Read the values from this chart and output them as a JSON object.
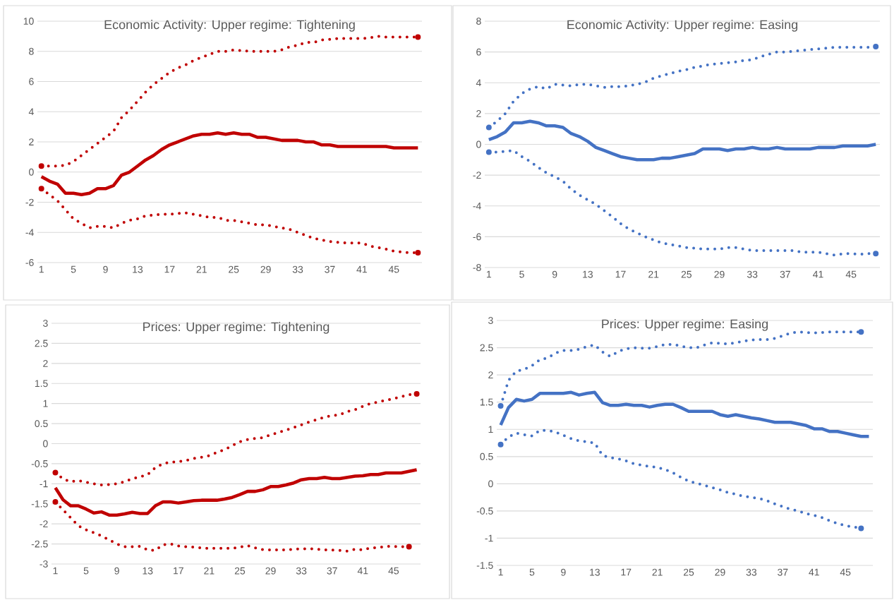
{
  "chart_data": [
    {
      "type": "line",
      "title": "Economic Activity: Upper regime: Tightening",
      "categories": [
        "1",
        null,
        null,
        null,
        "5",
        null,
        null,
        null,
        "9",
        null,
        null,
        null,
        "13",
        null,
        null,
        null,
        "17",
        null,
        null,
        null,
        "21",
        null,
        null,
        null,
        "25",
        null,
        null,
        null,
        "29",
        null,
        null,
        null,
        "33",
        null,
        null,
        null,
        "37",
        null,
        null,
        null,
        "41",
        null,
        null,
        null,
        "45",
        null,
        null,
        null
      ],
      "ylim": [
        -6,
        10
      ],
      "yticks": [
        -6,
        -4,
        -2,
        0,
        2,
        4,
        6,
        8,
        10
      ],
      "grid": "y",
      "marker": "none",
      "series": [
        {
          "color": "#c00000",
          "line_style": "dotted",
          "values": [
            0.4,
            0.4,
            0.4,
            0.45,
            0.7,
            1.1,
            1.5,
            1.9,
            2.3,
            2.7,
            3.6,
            4.1,
            4.7,
            5.3,
            5.8,
            6.2,
            6.6,
            6.9,
            7.1,
            7.4,
            7.6,
            7.8,
            8.0,
            8.0,
            8.1,
            8.05,
            8.0,
            8.0,
            8.0,
            8.0,
            8.1,
            8.3,
            8.4,
            8.6,
            8.6,
            8.75,
            8.8,
            8.85,
            8.85,
            8.85,
            8.85,
            8.9,
            9.0,
            8.95,
            8.95,
            8.95,
            8.95,
            8.95
          ]
        },
        {
          "color": "#c00000",
          "line_style": "solid",
          "values": [
            -0.3,
            -0.6,
            -0.8,
            -1.4,
            -1.4,
            -1.5,
            -1.4,
            -1.1,
            -1.1,
            -0.9,
            -0.2,
            0.0,
            0.4,
            0.8,
            1.1,
            1.5,
            1.8,
            2.0,
            2.2,
            2.4,
            2.5,
            2.5,
            2.6,
            2.5,
            2.6,
            2.5,
            2.5,
            2.3,
            2.3,
            2.2,
            2.1,
            2.1,
            2.1,
            2.0,
            2.0,
            1.8,
            1.8,
            1.7,
            1.7,
            1.7,
            1.7,
            1.7,
            1.7,
            1.7,
            1.6,
            1.6,
            1.6,
            1.6
          ]
        },
        {
          "color": "#c00000",
          "line_style": "dotted",
          "values": [
            -1.1,
            -1.5,
            -1.9,
            -2.5,
            -3.1,
            -3.4,
            -3.7,
            -3.6,
            -3.6,
            -3.7,
            -3.4,
            -3.2,
            -3.1,
            -2.9,
            -2.85,
            -2.8,
            -2.8,
            -2.75,
            -2.7,
            -2.8,
            -2.9,
            -3.0,
            -3.0,
            -3.2,
            -3.2,
            -3.3,
            -3.4,
            -3.5,
            -3.5,
            -3.6,
            -3.7,
            -3.8,
            -4.0,
            -4.2,
            -4.4,
            -4.5,
            -4.6,
            -4.65,
            -4.7,
            -4.7,
            -4.7,
            -4.9,
            -5.0,
            -5.1,
            -5.25,
            -5.3,
            -5.35,
            -5.35
          ]
        }
      ]
    },
    {
      "type": "line",
      "title": "Economic Activity: Upper regime: Easing",
      "categories": [
        "1",
        null,
        null,
        null,
        "5",
        null,
        null,
        null,
        "9",
        null,
        null,
        null,
        "13",
        null,
        null,
        null,
        "17",
        null,
        null,
        null,
        "21",
        null,
        null,
        null,
        "25",
        null,
        null,
        null,
        "29",
        null,
        null,
        null,
        "33",
        null,
        null,
        null,
        "37",
        null,
        null,
        null,
        "41",
        null,
        null,
        null,
        "45",
        null,
        null,
        null
      ],
      "ylim": [
        -8,
        8
      ],
      "yticks": [
        -8,
        -6,
        -4,
        -2,
        0,
        2,
        4,
        6,
        8
      ],
      "grid": "y",
      "marker": "none",
      "series": [
        {
          "color": "#4472c4",
          "line_style": "dotted",
          "values": [
            1.1,
            1.5,
            2.0,
            2.8,
            3.3,
            3.6,
            3.75,
            3.6,
            3.9,
            3.85,
            3.8,
            3.9,
            3.9,
            3.8,
            3.7,
            3.75,
            3.75,
            3.8,
            3.9,
            4.05,
            4.3,
            4.45,
            4.6,
            4.75,
            4.85,
            5.0,
            5.1,
            5.2,
            5.25,
            5.3,
            5.35,
            5.45,
            5.5,
            5.7,
            5.85,
            6.0,
            6.0,
            6.05,
            6.1,
            6.15,
            6.2,
            6.25,
            6.3,
            6.3,
            6.3,
            6.3,
            6.3,
            6.35
          ]
        },
        {
          "color": "#4472c4",
          "line_style": "solid",
          "values": [
            0.3,
            0.5,
            0.8,
            1.4,
            1.4,
            1.5,
            1.4,
            1.2,
            1.2,
            1.1,
            0.7,
            0.5,
            0.2,
            -0.2,
            -0.4,
            -0.6,
            -0.8,
            -0.9,
            -1.0,
            -1.0,
            -1.0,
            -0.9,
            -0.9,
            -0.8,
            -0.7,
            -0.6,
            -0.3,
            -0.3,
            -0.3,
            -0.4,
            -0.3,
            -0.3,
            -0.2,
            -0.3,
            -0.3,
            -0.2,
            -0.3,
            -0.3,
            -0.3,
            -0.3,
            -0.2,
            -0.2,
            -0.2,
            -0.1,
            -0.1,
            -0.1,
            -0.1,
            0.0
          ]
        },
        {
          "color": "#4472c4",
          "line_style": "dotted",
          "values": [
            -0.5,
            -0.5,
            -0.45,
            -0.4,
            -0.8,
            -1.1,
            -1.5,
            -1.85,
            -2.1,
            -2.4,
            -2.9,
            -3.3,
            -3.6,
            -3.9,
            -4.3,
            -4.7,
            -5.15,
            -5.5,
            -5.75,
            -6.0,
            -6.2,
            -6.4,
            -6.5,
            -6.6,
            -6.7,
            -6.75,
            -6.8,
            -6.8,
            -6.8,
            -6.7,
            -6.7,
            -6.8,
            -6.9,
            -6.9,
            -6.9,
            -6.9,
            -6.9,
            -6.9,
            -7.0,
            -7.0,
            -7.0,
            -7.1,
            -7.2,
            -7.1,
            -7.1,
            -7.15,
            -7.1,
            -7.1
          ]
        }
      ]
    },
    {
      "type": "line",
      "title": "Prices: Upper regime: Tightening",
      "categories": [
        "1",
        null,
        null,
        null,
        "5",
        null,
        null,
        null,
        "9",
        null,
        null,
        null,
        "13",
        null,
        null,
        null,
        "17",
        null,
        null,
        null,
        "21",
        null,
        null,
        null,
        "25",
        null,
        null,
        null,
        "29",
        null,
        null,
        null,
        "33",
        null,
        null,
        null,
        "37",
        null,
        null,
        null,
        "41",
        null,
        null,
        null,
        "45",
        null,
        null,
        null
      ],
      "ylim": [
        -3,
        3
      ],
      "yticks": [
        -3,
        -2.5,
        -2,
        -1.5,
        -1,
        -0.5,
        0,
        0.5,
        1,
        1.5,
        2,
        2.5,
        3
      ],
      "grid": "y",
      "marker": "none",
      "series": [
        {
          "color": "#c00000",
          "line_style": "dotted",
          "values": [
            -0.72,
            -0.88,
            -0.95,
            -0.92,
            -0.96,
            -1.0,
            -1.03,
            -1.02,
            -1.0,
            -0.95,
            -0.87,
            -0.83,
            -0.77,
            -0.6,
            -0.5,
            -0.46,
            -0.45,
            -0.42,
            -0.37,
            -0.34,
            -0.3,
            -0.22,
            -0.15,
            -0.05,
            0.05,
            0.1,
            0.13,
            0.15,
            0.22,
            0.28,
            0.34,
            0.4,
            0.47,
            0.54,
            0.6,
            0.66,
            0.7,
            0.72,
            0.8,
            0.85,
            0.93,
            1.0,
            1.04,
            1.08,
            1.12,
            1.17,
            1.22,
            1.24
          ]
        },
        {
          "color": "#c00000",
          "line_style": "solid",
          "values": [
            -1.1,
            -1.4,
            -1.55,
            -1.55,
            -1.63,
            -1.73,
            -1.7,
            -1.78,
            -1.78,
            -1.75,
            -1.71,
            -1.74,
            -1.74,
            -1.55,
            -1.45,
            -1.45,
            -1.48,
            -1.45,
            -1.42,
            -1.41,
            -1.41,
            -1.41,
            -1.38,
            -1.34,
            -1.27,
            -1.19,
            -1.19,
            -1.15,
            -1.07,
            -1.07,
            -1.03,
            -0.98,
            -0.9,
            -0.87,
            -0.87,
            -0.84,
            -0.87,
            -0.87,
            -0.84,
            -0.81,
            -0.8,
            -0.77,
            -0.77,
            -0.73,
            -0.73,
            -0.73,
            -0.69,
            -0.65
          ]
        },
        {
          "color": "#c00000",
          "line_style": "dotted",
          "values": [
            -1.45,
            -1.65,
            -1.85,
            -2.05,
            -2.15,
            -2.22,
            -2.3,
            -2.4,
            -2.5,
            -2.57,
            -2.57,
            -2.56,
            -2.65,
            -2.66,
            -2.52,
            -2.5,
            -2.55,
            -2.57,
            -2.58,
            -2.6,
            -2.61,
            -2.61,
            -2.61,
            -2.61,
            -2.58,
            -2.54,
            -2.6,
            -2.64,
            -2.65,
            -2.65,
            -2.65,
            -2.63,
            -2.62,
            -2.62,
            -2.63,
            -2.65,
            -2.65,
            -2.66,
            -2.68,
            -2.63,
            -2.65,
            -2.6,
            -2.59,
            -2.56,
            -2.56,
            -2.57,
            -2.57,
            null
          ]
        }
      ]
    },
    {
      "type": "line",
      "title": "Prices: Upper regime: Easing",
      "categories": [
        "1",
        null,
        null,
        null,
        "5",
        null,
        null,
        null,
        "9",
        null,
        null,
        null,
        "13",
        null,
        null,
        null,
        "17",
        null,
        null,
        null,
        "21",
        null,
        null,
        null,
        "25",
        null,
        null,
        null,
        "29",
        null,
        null,
        null,
        "33",
        null,
        null,
        null,
        "37",
        null,
        null,
        null,
        "41",
        null,
        null,
        null,
        "45",
        null,
        null,
        null
      ],
      "ylim": [
        -1.5,
        3
      ],
      "yticks": [
        -1.5,
        -1,
        -0.5,
        0,
        0.5,
        1,
        1.5,
        2,
        2.5,
        3
      ],
      "grid": "y",
      "marker": "none",
      "series": [
        {
          "color": "#4472c4",
          "line_style": "dotted",
          "values": [
            1.43,
            1.9,
            2.07,
            2.1,
            2.17,
            2.28,
            2.31,
            2.4,
            2.45,
            2.45,
            2.47,
            2.52,
            2.55,
            2.42,
            2.34,
            2.43,
            2.48,
            2.5,
            2.49,
            2.49,
            2.52,
            2.56,
            2.56,
            2.53,
            2.5,
            2.5,
            2.55,
            2.59,
            2.58,
            2.57,
            2.59,
            2.62,
            2.64,
            2.65,
            2.65,
            2.67,
            2.72,
            2.77,
            2.79,
            2.78,
            2.77,
            2.78,
            2.79,
            2.79,
            2.79,
            2.79,
            2.79,
            null
          ]
        },
        {
          "color": "#4472c4",
          "line_style": "solid",
          "values": [
            1.08,
            1.4,
            1.55,
            1.52,
            1.55,
            1.66,
            1.66,
            1.66,
            1.66,
            1.68,
            1.63,
            1.66,
            1.68,
            1.49,
            1.44,
            1.44,
            1.46,
            1.44,
            1.44,
            1.41,
            1.44,
            1.46,
            1.46,
            1.4,
            1.33,
            1.33,
            1.33,
            1.33,
            1.27,
            1.24,
            1.27,
            1.24,
            1.21,
            1.19,
            1.16,
            1.13,
            1.13,
            1.13,
            1.1,
            1.07,
            1.01,
            1.01,
            0.96,
            0.96,
            0.93,
            0.9,
            0.87,
            0.87
          ]
        },
        {
          "color": "#4472c4",
          "line_style": "dotted",
          "values": [
            0.72,
            0.86,
            0.93,
            0.9,
            0.88,
            0.98,
            0.98,
            0.95,
            0.89,
            0.83,
            0.79,
            0.77,
            0.75,
            0.52,
            0.48,
            0.46,
            0.42,
            0.37,
            0.34,
            0.32,
            0.3,
            0.26,
            0.2,
            0.12,
            0.05,
            0.01,
            -0.03,
            -0.07,
            -0.11,
            -0.16,
            -0.19,
            -0.23,
            -0.25,
            -0.27,
            -0.31,
            -0.37,
            -0.42,
            -0.47,
            -0.5,
            -0.55,
            -0.58,
            -0.62,
            -0.68,
            -0.73,
            -0.77,
            -0.79,
            -0.82,
            null
          ]
        }
      ]
    }
  ]
}
